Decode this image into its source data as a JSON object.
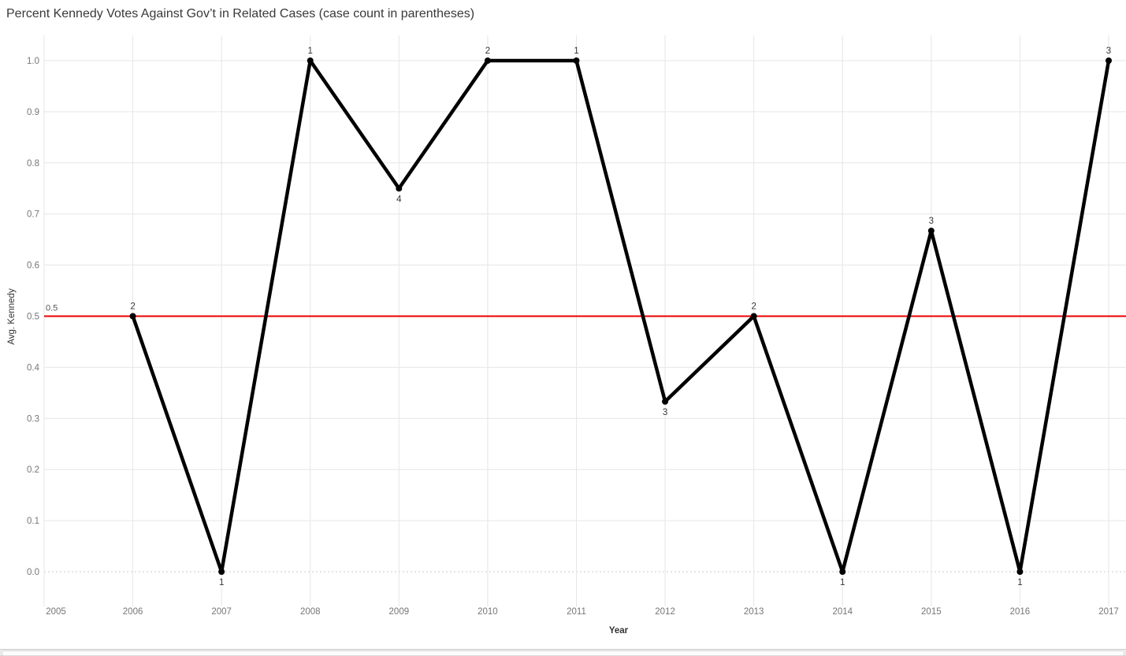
{
  "title": "Percent Kennedy Votes Against Gov’t in Related Cases (case count in parentheses)",
  "chart_data": {
    "type": "line",
    "title": "Percent Kennedy Votes Against Gov’t in Related Cases (case count in parentheses)",
    "xlabel": "Year",
    "ylabel": "Avg. Kennedy",
    "x": [
      2006,
      2007,
      2008,
      2009,
      2010,
      2011,
      2012,
      2013,
      2014,
      2015,
      2016,
      2017
    ],
    "values": [
      0.5,
      0.0,
      1.0,
      0.75,
      1.0,
      1.0,
      0.333,
      0.5,
      0.0,
      0.667,
      0.0,
      1.0
    ],
    "point_labels": [
      "2",
      "1",
      "1",
      "4",
      "2",
      "1",
      "3",
      "2",
      "1",
      "3",
      "1",
      "3"
    ],
    "label_positions": [
      "above",
      "below",
      "above",
      "below",
      "above",
      "above",
      "below",
      "above",
      "below",
      "above",
      "below",
      "above"
    ],
    "x_ticks": [
      2005,
      2006,
      2007,
      2008,
      2009,
      2010,
      2011,
      2012,
      2013,
      2014,
      2015,
      2016,
      2017
    ],
    "y_ticks": [
      0.0,
      0.1,
      0.2,
      0.3,
      0.4,
      0.5,
      0.6,
      0.7,
      0.8,
      0.9,
      1.0
    ],
    "xlim": [
      2005,
      2017
    ],
    "ylim": [
      0.0,
      1.0
    ],
    "grid": true,
    "legend": "none",
    "reference_line": {
      "value": 0.5,
      "label": "0.5"
    },
    "colors": {
      "series_line": "#000000",
      "marker": "#000000",
      "reference_line": "#ec0000",
      "point_label": "#333333",
      "tick_label": "#767676",
      "axis_title": "#333333",
      "title": "#393939",
      "gridline": "#e6e6e6",
      "zero_line": "#c9c9c9",
      "ref_label": "#575757"
    }
  }
}
